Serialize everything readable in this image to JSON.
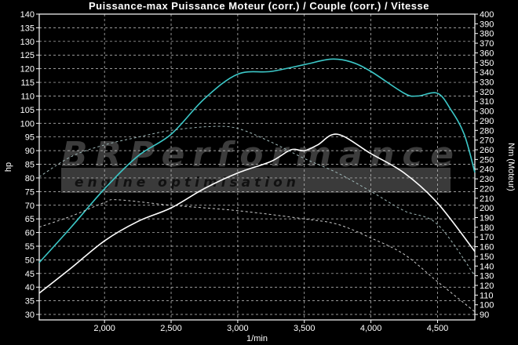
{
  "chart_data": {
    "type": "line",
    "title": "Puissance-max Puissance Moteur (corr.) / Couple (corr.) / Vitesse",
    "xlabel": "1/min",
    "ylabel": "hp",
    "y2label": "Nm (Moteur)",
    "xlim": [
      1510,
      4780
    ],
    "ylim": [
      28,
      140
    ],
    "y2lim": [
      84.4,
      400
    ],
    "xticks": [
      "2,000",
      "2,500",
      "3,000",
      "3,500",
      "4,000",
      "4,500"
    ],
    "xtick_values": [
      2000,
      2500,
      3000,
      3500,
      4000,
      4500
    ],
    "yticks": [
      30,
      35,
      40,
      45,
      50,
      55,
      60,
      65,
      70,
      75,
      80,
      85,
      90,
      95,
      100,
      105,
      110,
      115,
      120,
      125,
      130,
      135,
      140
    ],
    "y2ticks": [
      90,
      100,
      110,
      120,
      130,
      140,
      150,
      160,
      170,
      180,
      190,
      200,
      210,
      220,
      230,
      240,
      250,
      260,
      270,
      280,
      290,
      300,
      310,
      320,
      330,
      340,
      350,
      360,
      370,
      380,
      390,
      400
    ],
    "grid": true,
    "watermark": {
      "brand": "BRPerformance",
      "tagline": "engine optimisation"
    },
    "series": [
      {
        "axis": "left",
        "style": "solid",
        "color": "#3cc8c8",
        "x": [
          1510,
          1750,
          2000,
          2250,
          2500,
          2750,
          3000,
          3250,
          3500,
          3700,
          3850,
          4000,
          4250,
          4350,
          4500,
          4600,
          4700,
          4780
        ],
        "y": [
          49,
          62,
          76,
          88,
          96,
          109,
          118,
          119,
          121.5,
          123.5,
          122.5,
          119,
          111,
          110,
          111,
          105,
          96,
          82
        ]
      },
      {
        "axis": "right",
        "style": "solid",
        "color": "#ffffff",
        "x": [
          1510,
          1750,
          2000,
          2250,
          2500,
          2750,
          3000,
          3250,
          3400,
          3500,
          3600,
          3750,
          4000,
          4250,
          4500,
          4780
        ],
        "y": [
          112,
          138,
          166,
          186,
          200,
          220,
          236,
          248,
          260,
          259,
          265,
          276,
          256,
          236,
          205,
          155
        ]
      },
      {
        "axis": "right",
        "style": "dashed",
        "color": "#9fb8b8",
        "x": [
          1510,
          1750,
          2000,
          2250,
          2500,
          2800,
          3000,
          3250,
          3500,
          3750,
          4000,
          4250,
          4500,
          4780
        ],
        "y": [
          232,
          253,
          265,
          273,
          280,
          284,
          282,
          268,
          251,
          236,
          217,
          197,
          183,
          130
        ]
      },
      {
        "axis": "left",
        "style": "dashed",
        "color": "#cccccc",
        "x": [
          1510,
          1750,
          2000,
          2100,
          2500,
          3000,
          3500,
          3750,
          4000,
          4250,
          4500,
          4780
        ],
        "y": [
          62,
          66,
          71,
          72,
          70,
          68,
          65,
          63,
          58,
          52,
          42,
          31
        ]
      }
    ]
  }
}
